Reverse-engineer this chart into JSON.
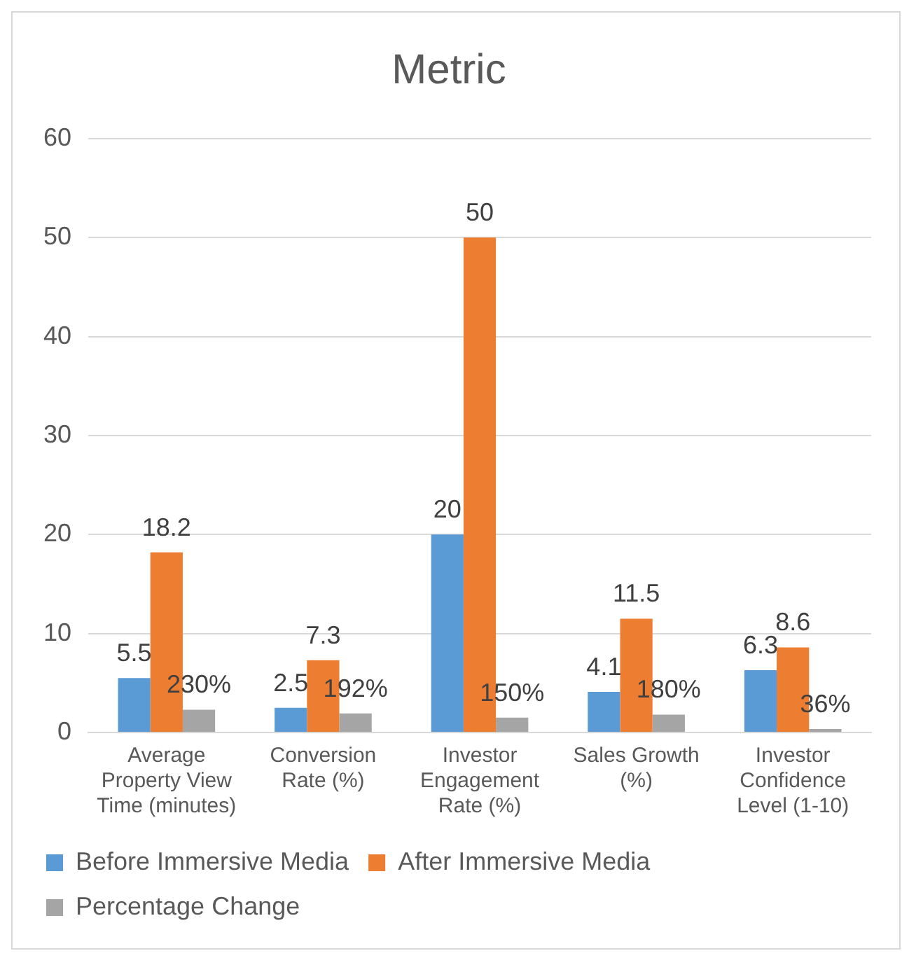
{
  "chart_data": {
    "type": "bar",
    "title": "Metric",
    "categories": [
      "Average Property View Time (minutes)",
      "Conversion Rate (%)",
      "Investor Engagement Rate (%)",
      "Sales Growth (%)",
      "Investor Confidence Level (1-10)"
    ],
    "series": [
      {
        "name": "Before Immersive Media",
        "color": "#5b9bd5",
        "values": [
          5.5,
          2.5,
          20,
          4.1,
          6.3
        ],
        "value_labels": [
          "5.5",
          "2.5",
          "20",
          "4.1",
          "6.3"
        ]
      },
      {
        "name": "After Immersive Media",
        "color": "#ed7d31",
        "values": [
          18.2,
          7.3,
          50,
          11.5,
          8.6
        ],
        "value_labels": [
          "18.2",
          "7.3",
          "50",
          "11.5",
          "8.6"
        ]
      },
      {
        "name": "Percentage Change",
        "color": "#a5a5a5",
        "values": [
          2.3,
          1.92,
          1.5,
          1.8,
          0.36
        ],
        "value_labels": [
          "230%",
          "192%",
          "150%",
          "180%",
          "36%"
        ]
      }
    ],
    "ylim": [
      0,
      60
    ],
    "yticks": [
      0,
      10,
      20,
      30,
      40,
      50,
      60
    ],
    "grid": "y",
    "legend": "bottom"
  }
}
